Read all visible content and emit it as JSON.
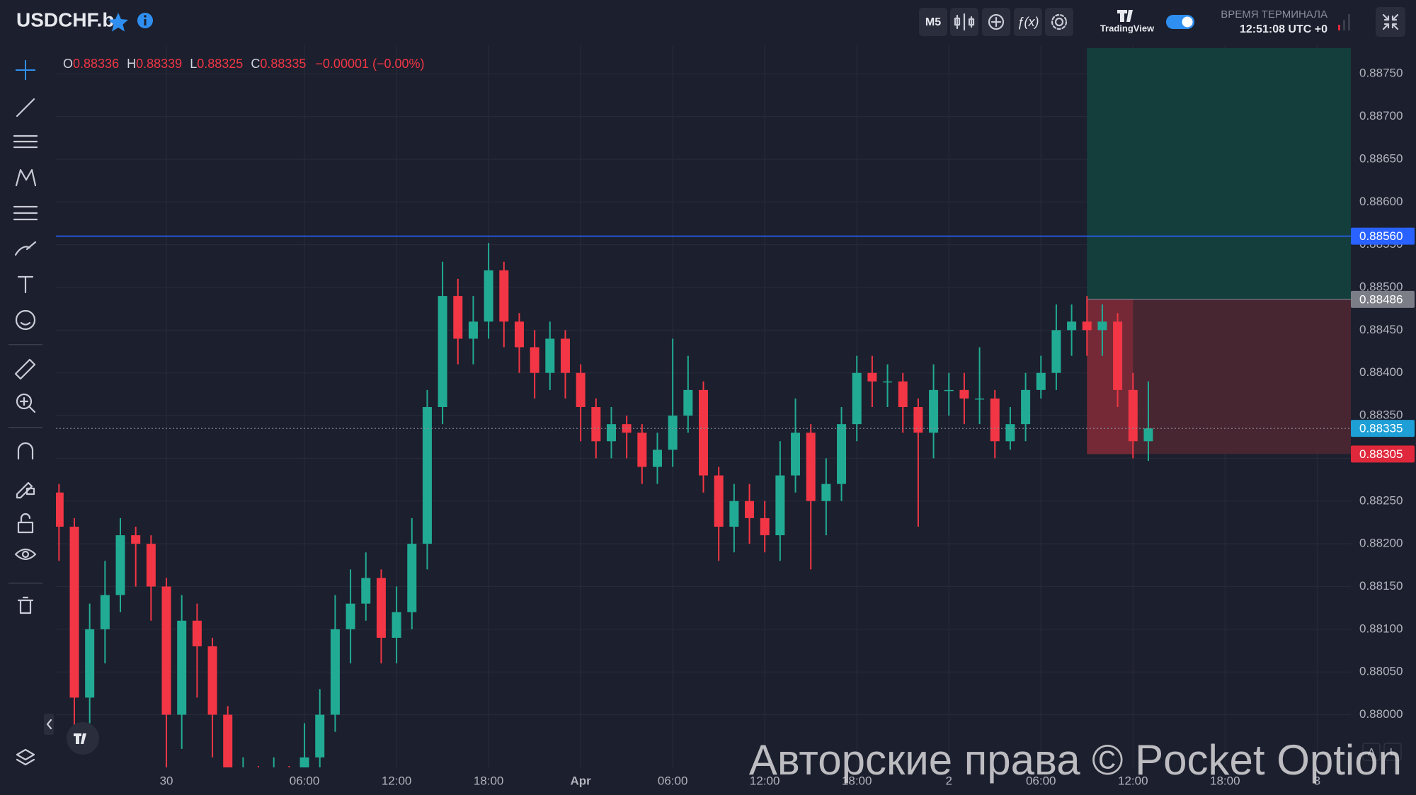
{
  "header": {
    "symbol": "USDCHF.b",
    "interval": "M5",
    "brand": "TradingView",
    "clock_title": "ВРЕМЯ ТЕРМИНАЛА",
    "clock_time": "12:51:08 UTC +0"
  },
  "legend": {
    "o_label": "O",
    "o": 0.88336,
    "h_label": "H",
    "h": 0.88339,
    "l_label": "L",
    "l": 0.88325,
    "c_label": "C",
    "c": 0.88335,
    "change": "−0.00001 (−0.00%)"
  },
  "watermark": "Авторские права © Pocket Option",
  "chart_data": {
    "type": "candlestick",
    "up_color": "#22ab94",
    "down_color": "#f23645",
    "grid": true,
    "x": [
      -7,
      -6,
      -5,
      -4,
      -3,
      -2,
      -1,
      0,
      1,
      2,
      3,
      4,
      5,
      6,
      7,
      8,
      9,
      10,
      11,
      12,
      13,
      14,
      15,
      16,
      17,
      18,
      19,
      20,
      21,
      22,
      23,
      24,
      25,
      26,
      27,
      28,
      29,
      30,
      31,
      32,
      33,
      34,
      35,
      36,
      37,
      38,
      39,
      40,
      41,
      42,
      43,
      44,
      45,
      46,
      47,
      48,
      49,
      50,
      51,
      52,
      53,
      54,
      55,
      56,
      57,
      58,
      59,
      60,
      61,
      62,
      63,
      64
    ],
    "open": [
      0.8826,
      0.8822,
      0.8802,
      0.881,
      0.8814,
      0.8821,
      0.882,
      0.8815,
      0.88,
      0.8811,
      0.8808,
      0.88,
      0.8792,
      0.8793,
      0.8792,
      0.8793,
      0.8792,
      0.8795,
      0.88,
      0.881,
      0.8813,
      0.8816,
      0.8809,
      0.8812,
      0.882,
      0.8836,
      0.8849,
      0.8844,
      0.8846,
      0.8852,
      0.8846,
      0.8843,
      0.884,
      0.8844,
      0.884,
      0.8836,
      0.8832,
      0.8834,
      0.8833,
      0.8829,
      0.8831,
      0.8835,
      0.8838,
      0.8828,
      0.8822,
      0.8825,
      0.8823,
      0.8821,
      0.8828,
      0.8833,
      0.8825,
      0.8827,
      0.8834,
      0.884,
      0.8839,
      0.8839,
      0.8836,
      0.8833,
      0.8838,
      0.8838,
      0.8837,
      0.8837,
      0.8832,
      0.8834,
      0.8838,
      0.884,
      0.8845,
      0.8846,
      0.8845,
      0.8846,
      0.8838,
      0.8832
    ],
    "high": [
      0.8827,
      0.8823,
      0.8813,
      0.8818,
      0.8823,
      0.8822,
      0.8821,
      0.8816,
      0.8814,
      0.8813,
      0.8809,
      0.8801,
      0.8795,
      0.8794,
      0.8795,
      0.8794,
      0.8799,
      0.8803,
      0.8814,
      0.8817,
      0.8819,
      0.8817,
      0.8815,
      0.8823,
      0.8838,
      0.8853,
      0.8851,
      0.8849,
      0.88552,
      0.8853,
      0.8847,
      0.8845,
      0.8846,
      0.8845,
      0.8841,
      0.8837,
      0.8836,
      0.8835,
      0.8834,
      0.8833,
      0.8844,
      0.8842,
      0.8839,
      0.8829,
      0.8827,
      0.8827,
      0.8825,
      0.8832,
      0.8837,
      0.8834,
      0.883,
      0.8836,
      0.8842,
      0.8842,
      0.8841,
      0.884,
      0.8837,
      0.8841,
      0.884,
      0.884,
      0.8843,
      0.8838,
      0.8836,
      0.884,
      0.8842,
      0.8848,
      0.8848,
      0.8849,
      0.8848,
      0.8847,
      0.884,
      0.8839
    ],
    "low": [
      0.8818,
      0.8798,
      0.8799,
      0.8806,
      0.8812,
      0.8815,
      0.8811,
      0.8792,
      0.8796,
      0.8802,
      0.8795,
      0.879,
      0.879,
      0.879,
      0.879,
      0.879,
      0.879,
      0.8792,
      0.8798,
      0.8806,
      0.8811,
      0.8806,
      0.8806,
      0.881,
      0.8817,
      0.8834,
      0.8841,
      0.8841,
      0.8844,
      0.8843,
      0.884,
      0.8837,
      0.8838,
      0.8837,
      0.8832,
      0.883,
      0.883,
      0.883,
      0.8827,
      0.8827,
      0.8829,
      0.8833,
      0.8826,
      0.8818,
      0.8819,
      0.882,
      0.8819,
      0.8818,
      0.8826,
      0.8817,
      0.8821,
      0.8825,
      0.8832,
      0.8836,
      0.8836,
      0.8833,
      0.8822,
      0.883,
      0.8835,
      0.8834,
      0.8834,
      0.883,
      0.8831,
      0.8832,
      0.8837,
      0.8838,
      0.8842,
      0.8842,
      0.8842,
      0.8836,
      0.883,
      0.88297
    ],
    "close": [
      0.8822,
      0.8802,
      0.881,
      0.8814,
      0.8821,
      0.882,
      0.8815,
      0.88,
      0.8811,
      0.8808,
      0.88,
      0.8792,
      0.8793,
      0.8792,
      0.8793,
      0.8792,
      0.8795,
      0.88,
      0.881,
      0.8813,
      0.8816,
      0.8809,
      0.8812,
      0.882,
      0.8836,
      0.8849,
      0.8844,
      0.8846,
      0.8852,
      0.8846,
      0.8843,
      0.884,
      0.8844,
      0.884,
      0.8836,
      0.8832,
      0.8834,
      0.8833,
      0.8829,
      0.8831,
      0.8835,
      0.8838,
      0.8828,
      0.8822,
      0.8825,
      0.8823,
      0.8821,
      0.8828,
      0.8833,
      0.8825,
      0.8827,
      0.8834,
      0.884,
      0.8839,
      0.8839,
      0.8836,
      0.8833,
      0.8838,
      0.8838,
      0.8837,
      0.8837,
      0.8832,
      0.8834,
      0.8838,
      0.884,
      0.8845,
      0.8846,
      0.8845,
      0.8846,
      0.8838,
      0.8832,
      0.88335
    ],
    "xlim": [
      -7.2,
      77.2
    ],
    "xticks": [
      {
        "value": 0,
        "label": "30"
      },
      {
        "value": 9,
        "label": "06:00"
      },
      {
        "value": 15,
        "label": "12:00"
      },
      {
        "value": 21,
        "label": "18:00"
      },
      {
        "value": 27,
        "label": "Apr"
      },
      {
        "value": 33,
        "label": "06:00"
      },
      {
        "value": 39,
        "label": "12:00"
      },
      {
        "value": 45,
        "label": "18:00"
      },
      {
        "value": 51,
        "label": "2"
      },
      {
        "value": 57,
        "label": "06:00"
      },
      {
        "value": 63,
        "label": "12:00"
      },
      {
        "value": 69,
        "label": "18:00"
      },
      {
        "value": 75,
        "label": "3"
      }
    ],
    "ylim": [
      0.8794,
      0.8878
    ],
    "yticks": [
      {
        "value": 0.8875,
        "label": "0.88750"
      },
      {
        "value": 0.887,
        "label": "0.88700"
      },
      {
        "value": 0.8865,
        "label": "0.88650"
      },
      {
        "value": 0.886,
        "label": "0.88600"
      },
      {
        "value": 0.8855,
        "label": "0.88550"
      },
      {
        "value": 0.885,
        "label": "0.88500"
      },
      {
        "value": 0.8845,
        "label": "0.88450"
      },
      {
        "value": 0.884,
        "label": "0.88400"
      },
      {
        "value": 0.8835,
        "label": "0.88350"
      },
      {
        "value": 0.883,
        "label": "0.88300"
      },
      {
        "value": 0.8825,
        "label": "0.88250"
      },
      {
        "value": 0.882,
        "label": "0.88200"
      },
      {
        "value": 0.8815,
        "label": "0.88150"
      },
      {
        "value": 0.881,
        "label": "0.88100"
      },
      {
        "value": 0.8805,
        "label": "0.88050"
      },
      {
        "value": 0.88,
        "label": "0.88000"
      }
    ],
    "levels": [
      {
        "value": 0.8856,
        "label": "0.88560",
        "color": "#2962ff",
        "line": "solid"
      },
      {
        "value": 0.88486,
        "label": "0.88486",
        "color": "#7b7e87",
        "line": "none"
      },
      {
        "value": 0.88335,
        "label": "0.88335",
        "color": "#1e9fd6",
        "line": "dotted"
      },
      {
        "value": 0.88305,
        "label": "0.88305",
        "color": "#e0283c",
        "line": "none"
      }
    ],
    "position": {
      "start_x": 60,
      "live_x": 63,
      "entry": 0.88486,
      "target": 0.8878,
      "stop": 0.88305,
      "profit_color": "#14413e",
      "loss_color": "#4a2632",
      "live_loss_color": "#7a2a37"
    }
  }
}
